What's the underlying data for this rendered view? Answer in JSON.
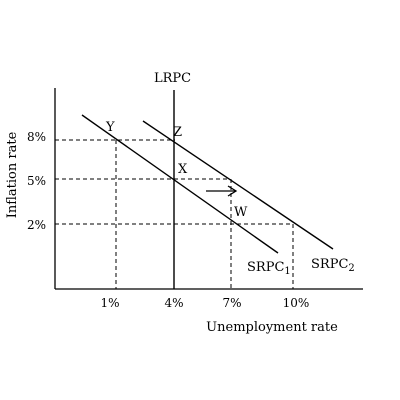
{
  "chart_data": {
    "type": "line",
    "xlabel": "Unemployment rate",
    "ylabel": "Inflation rate",
    "x_ticks": [
      "1%",
      "4%",
      "7%",
      "10%"
    ],
    "y_ticks": [
      "8%",
      "5%",
      "2%"
    ],
    "curves": {
      "lrpc": "LRPC",
      "srpc1_base": "SRPC",
      "srpc1_sub": "1",
      "srpc2_base": "SRPC",
      "srpc2_sub": "2"
    },
    "points": [
      {
        "label": "Y",
        "unemployment": 1,
        "inflation": 8
      },
      {
        "label": "Z",
        "unemployment": 4,
        "inflation": 8
      },
      {
        "label": "X",
        "unemployment": 4,
        "inflation": 5
      },
      {
        "label": "W",
        "unemployment": 7,
        "inflation": 2
      }
    ]
  }
}
